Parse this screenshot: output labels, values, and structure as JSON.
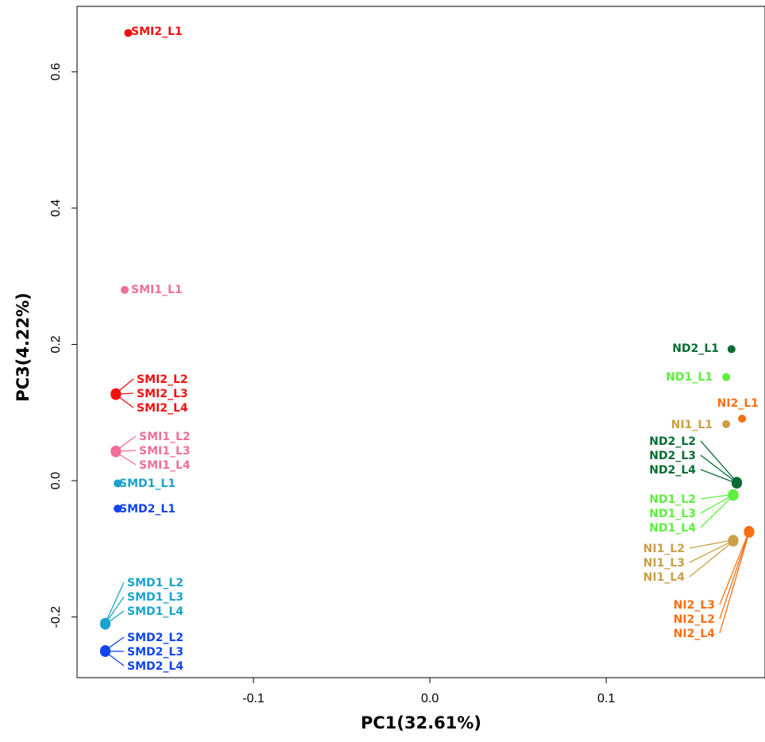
{
  "chart_data": {
    "type": "scatter",
    "title": "",
    "xlabel": "PC1(32.61%)",
    "ylabel": "PC3(4.22%)",
    "xlim": [
      -0.2,
      0.19
    ],
    "ylim": [
      -0.289,
      0.696
    ],
    "xticks": [
      {
        "value": -0.1,
        "label": "-0.1"
      },
      {
        "value": 0.0,
        "label": "0.0"
      },
      {
        "value": 0.1,
        "label": "0.1"
      }
    ],
    "yticks": [
      {
        "value": -0.2,
        "label": "-0.2"
      },
      {
        "value": 0.0,
        "label": "0.0"
      },
      {
        "value": 0.2,
        "label": "0.2"
      },
      {
        "value": 0.4,
        "label": "0.4"
      },
      {
        "value": 0.6,
        "label": "0.6"
      }
    ],
    "grid": false,
    "legend": "none",
    "colors": {
      "SMI2": "#ee1111",
      "SMI1": "#f06f9c",
      "SMD1": "#1aa3cc",
      "SMD2": "#1144ee",
      "ND2": "#0b6b35",
      "ND1": "#5fef3f",
      "NI2": "#f57015",
      "NI1": "#c9a048"
    },
    "points": [
      {
        "label": "SMI2_L1",
        "group": "SMI2",
        "x": -0.171,
        "y": 0.657
      },
      {
        "label": "SMI1_L1",
        "group": "SMI1",
        "x": -0.173,
        "y": 0.28
      },
      {
        "label": "SMI2_L2",
        "group": "SMI2",
        "x": -0.178,
        "y": 0.128
      },
      {
        "label": "SMI2_L3",
        "group": "SMI2",
        "x": -0.178,
        "y": 0.127
      },
      {
        "label": "SMI2_L4",
        "group": "SMI2",
        "x": -0.178,
        "y": 0.126
      },
      {
        "label": "SMI1_L2",
        "group": "SMI1",
        "x": -0.178,
        "y": 0.044
      },
      {
        "label": "SMI1_L3",
        "group": "SMI1",
        "x": -0.178,
        "y": 0.043
      },
      {
        "label": "SMI1_L4",
        "group": "SMI1",
        "x": -0.178,
        "y": 0.042
      },
      {
        "label": "SMD1_L1",
        "group": "SMD1",
        "x": -0.177,
        "y": -0.004
      },
      {
        "label": "SMD2_L1",
        "group": "SMD2",
        "x": -0.177,
        "y": -0.041
      },
      {
        "label": "SMD1_L2",
        "group": "SMD1",
        "x": -0.184,
        "y": -0.209
      },
      {
        "label": "SMD1_L3",
        "group": "SMD1",
        "x": -0.184,
        "y": -0.21
      },
      {
        "label": "SMD1_L4",
        "group": "SMD1",
        "x": -0.184,
        "y": -0.211
      },
      {
        "label": "SMD2_L2",
        "group": "SMD2",
        "x": -0.184,
        "y": -0.249
      },
      {
        "label": "SMD2_L3",
        "group": "SMD2",
        "x": -0.184,
        "y": -0.25
      },
      {
        "label": "SMD2_L4",
        "group": "SMD2",
        "x": -0.184,
        "y": -0.251
      },
      {
        "label": "ND2_L1",
        "group": "ND2",
        "x": 0.171,
        "y": 0.193
      },
      {
        "label": "ND1_L1",
        "group": "ND1",
        "x": 0.168,
        "y": 0.152
      },
      {
        "label": "NI2_L1",
        "group": "NI2",
        "x": 0.177,
        "y": 0.091
      },
      {
        "label": "NI1_L1",
        "group": "NI1",
        "x": 0.168,
        "y": 0.083
      },
      {
        "label": "ND2_L2",
        "group": "ND2",
        "x": 0.174,
        "y": -0.002
      },
      {
        "label": "ND2_L3",
        "group": "ND2",
        "x": 0.174,
        "y": -0.003
      },
      {
        "label": "ND2_L4",
        "group": "ND2",
        "x": 0.174,
        "y": -0.004
      },
      {
        "label": "ND1_L2",
        "group": "ND1",
        "x": 0.172,
        "y": -0.02
      },
      {
        "label": "ND1_L3",
        "group": "ND1",
        "x": 0.172,
        "y": -0.021
      },
      {
        "label": "ND1_L4",
        "group": "ND1",
        "x": 0.172,
        "y": -0.022
      },
      {
        "label": "NI1_L2",
        "group": "NI1",
        "x": 0.172,
        "y": -0.087
      },
      {
        "label": "NI1_L3",
        "group": "NI1",
        "x": 0.172,
        "y": -0.088
      },
      {
        "label": "NI1_L4",
        "group": "NI1",
        "x": 0.172,
        "y": -0.089
      },
      {
        "label": "NI2_L3",
        "group": "NI2",
        "x": 0.181,
        "y": -0.074
      },
      {
        "label": "NI2_L2",
        "group": "NI2",
        "x": 0.181,
        "y": -0.075
      },
      {
        "label": "NI2_L4",
        "group": "NI2",
        "x": 0.181,
        "y": -0.076
      }
    ]
  }
}
